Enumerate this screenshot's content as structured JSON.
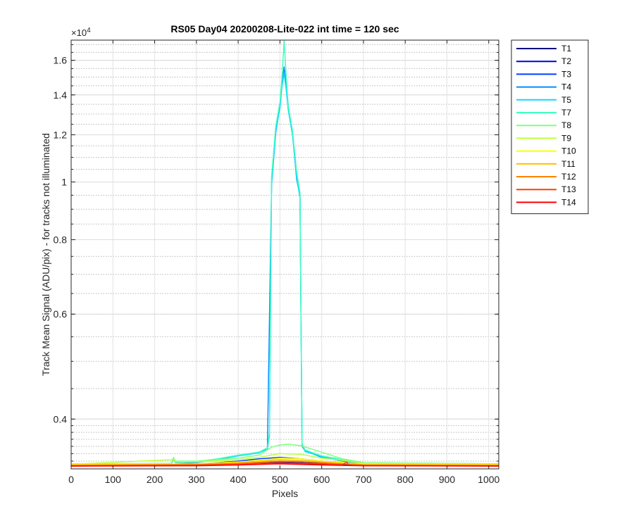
{
  "chart_data": {
    "type": "line",
    "title": "RS05 Day04 20200208-Lite-022 int time = 120 sec",
    "xlabel": "Pixels",
    "ylabel": "Track Mean Signal (ADU/pix) - for tracks not illuminated",
    "y_exponent_label": "×10",
    "y_exponent_power": "4",
    "y_scale": "log",
    "xlim": [
      0,
      1024
    ],
    "ylim": [
      3300,
      17300
    ],
    "x_ticks": [
      0,
      100,
      200,
      300,
      400,
      500,
      600,
      700,
      800,
      900,
      1000
    ],
    "x_tick_labels": [
      "0",
      "100",
      "200",
      "300",
      "400",
      "500",
      "600",
      "700",
      "800",
      "900",
      "1000"
    ],
    "y_ticks": [
      4000,
      6000,
      8000,
      10000,
      12000,
      14000,
      16000
    ],
    "y_tick_labels": [
      "0.4",
      "0.6",
      "0.8",
      "1",
      "1.2",
      "1.4",
      "1.6"
    ],
    "y_minor_ticks": [
      3400,
      3500,
      3600,
      3700,
      3800,
      3900,
      4000,
      4500,
      5000,
      5500,
      6000,
      6500,
      7000,
      7500,
      8000,
      8500,
      9000,
      9500,
      10000,
      10500,
      11000,
      11500,
      12000,
      12500,
      13000,
      13500,
      14000,
      14500,
      15000,
      15500,
      16000,
      16500,
      17000
    ],
    "grid": true,
    "minor_grid": true,
    "legend_position": "outside-top-right",
    "series": [
      {
        "name": "T1",
        "color": "#00007f",
        "points": [
          [
            0,
            3340
          ],
          [
            300,
            3345
          ],
          [
            400,
            3360
          ],
          [
            500,
            3375
          ],
          [
            600,
            3360
          ],
          [
            700,
            3345
          ],
          [
            1024,
            3340
          ]
        ]
      },
      {
        "name": "T2",
        "color": "#0000d4",
        "points": [
          [
            0,
            3345
          ],
          [
            300,
            3350
          ],
          [
            400,
            3370
          ],
          [
            500,
            3390
          ],
          [
            600,
            3370
          ],
          [
            700,
            3350
          ],
          [
            1024,
            3345
          ]
        ]
      },
      {
        "name": "T3",
        "color": "#0040ff",
        "points": [
          [
            0,
            3350
          ],
          [
            300,
            3360
          ],
          [
            400,
            3400
          ],
          [
            450,
            3430
          ],
          [
            500,
            3450
          ],
          [
            550,
            3430
          ],
          [
            600,
            3400
          ],
          [
            700,
            3360
          ],
          [
            1024,
            3350
          ]
        ]
      },
      {
        "name": "T4",
        "color": "#0090ff",
        "points": [
          [
            0,
            3355
          ],
          [
            250,
            3360
          ],
          [
            300,
            3380
          ],
          [
            350,
            3420
          ],
          [
            400,
            3470
          ],
          [
            450,
            3520
          ],
          [
            470,
            3560
          ],
          [
            480,
            9900
          ],
          [
            490,
            12100
          ],
          [
            500,
            13400
          ],
          [
            505,
            14600
          ],
          [
            510,
            15600
          ],
          [
            515,
            14600
          ],
          [
            520,
            13400
          ],
          [
            530,
            12100
          ],
          [
            540,
            10100
          ],
          [
            548,
            9500
          ],
          [
            553,
            3600
          ],
          [
            560,
            3540
          ],
          [
            600,
            3450
          ],
          [
            650,
            3400
          ],
          [
            700,
            3370
          ],
          [
            1024,
            3355
          ]
        ]
      },
      {
        "name": "T5",
        "color": "#10d8ff",
        "points": [
          [
            0,
            3360
          ],
          [
            240,
            3365
          ],
          [
            245,
            3420
          ],
          [
            250,
            3380
          ],
          [
            300,
            3385
          ],
          [
            350,
            3420
          ],
          [
            400,
            3470
          ],
          [
            450,
            3510
          ],
          [
            470,
            3560
          ],
          [
            475,
            3750
          ],
          [
            480,
            10000
          ],
          [
            490,
            12200
          ],
          [
            500,
            13300
          ],
          [
            505,
            14500
          ],
          [
            510,
            15200
          ],
          [
            515,
            14300
          ],
          [
            520,
            13200
          ],
          [
            530,
            12000
          ],
          [
            540,
            10200
          ],
          [
            548,
            9400
          ],
          [
            553,
            3620
          ],
          [
            560,
            3530
          ],
          [
            600,
            3460
          ],
          [
            650,
            3410
          ],
          [
            700,
            3370
          ],
          [
            1024,
            3360
          ]
        ]
      },
      {
        "name": "T7",
        "color": "#40ffbf",
        "points": [
          [
            0,
            3360
          ],
          [
            240,
            3370
          ],
          [
            245,
            3440
          ],
          [
            250,
            3390
          ],
          [
            300,
            3395
          ],
          [
            350,
            3430
          ],
          [
            400,
            3480
          ],
          [
            450,
            3520
          ],
          [
            470,
            3580
          ],
          [
            475,
            3800
          ],
          [
            480,
            10200
          ],
          [
            490,
            12400
          ],
          [
            500,
            13600
          ],
          [
            505,
            15000
          ],
          [
            510,
            17300
          ],
          [
            515,
            15000
          ],
          [
            520,
            13400
          ],
          [
            530,
            12200
          ],
          [
            540,
            10400
          ],
          [
            548,
            9600
          ],
          [
            553,
            3640
          ],
          [
            560,
            3550
          ],
          [
            600,
            3470
          ],
          [
            650,
            3420
          ],
          [
            700,
            3380
          ],
          [
            1024,
            3365
          ]
        ]
      },
      {
        "name": "T8",
        "color": "#80ff80",
        "points": [
          [
            0,
            3365
          ],
          [
            240,
            3370
          ],
          [
            245,
            3450
          ],
          [
            250,
            3400
          ],
          [
            300,
            3400
          ],
          [
            400,
            3440
          ],
          [
            450,
            3480
          ],
          [
            480,
            3590
          ],
          [
            500,
            3620
          ],
          [
            520,
            3630
          ],
          [
            550,
            3610
          ],
          [
            600,
            3520
          ],
          [
            650,
            3430
          ],
          [
            700,
            3380
          ],
          [
            1024,
            3365
          ]
        ]
      },
      {
        "name": "T9",
        "color": "#bfff40",
        "points": [
          [
            0,
            3360
          ],
          [
            245,
            3420
          ],
          [
            250,
            3390
          ],
          [
            300,
            3390
          ],
          [
            400,
            3420
          ],
          [
            450,
            3450
          ],
          [
            500,
            3500
          ],
          [
            550,
            3490
          ],
          [
            600,
            3440
          ],
          [
            650,
            3410
          ],
          [
            700,
            3370
          ],
          [
            1024,
            3360
          ]
        ]
      },
      {
        "name": "T10",
        "color": "#ffff00",
        "points": [
          [
            0,
            3355
          ],
          [
            300,
            3365
          ],
          [
            400,
            3390
          ],
          [
            450,
            3410
          ],
          [
            500,
            3440
          ],
          [
            550,
            3430
          ],
          [
            600,
            3400
          ],
          [
            650,
            3380
          ],
          [
            700,
            3360
          ],
          [
            1024,
            3355
          ]
        ]
      },
      {
        "name": "T11",
        "color": "#ffbf00",
        "points": [
          [
            0,
            3350
          ],
          [
            300,
            3360
          ],
          [
            400,
            3380
          ],
          [
            450,
            3400
          ],
          [
            500,
            3420
          ],
          [
            550,
            3410
          ],
          [
            600,
            3390
          ],
          [
            650,
            3370
          ],
          [
            700,
            3355
          ],
          [
            1024,
            3350
          ]
        ]
      },
      {
        "name": "T12",
        "color": "#ff8000",
        "points": [
          [
            0,
            3345
          ],
          [
            300,
            3355
          ],
          [
            400,
            3370
          ],
          [
            450,
            3385
          ],
          [
            500,
            3400
          ],
          [
            550,
            3395
          ],
          [
            600,
            3380
          ],
          [
            650,
            3365
          ],
          [
            700,
            3350
          ],
          [
            1024,
            3345
          ]
        ]
      },
      {
        "name": "T13",
        "color": "#ff4000",
        "points": [
          [
            0,
            3340
          ],
          [
            300,
            3348
          ],
          [
            400,
            3360
          ],
          [
            500,
            3380
          ],
          [
            600,
            3365
          ],
          [
            650,
            3355
          ],
          [
            660,
            3390
          ],
          [
            665,
            3345
          ],
          [
            700,
            3342
          ],
          [
            1024,
            3340
          ]
        ]
      },
      {
        "name": "T14",
        "color": "#ff0000",
        "points": [
          [
            0,
            3335
          ],
          [
            300,
            3340
          ],
          [
            400,
            3350
          ],
          [
            500,
            3365
          ],
          [
            600,
            3350
          ],
          [
            700,
            3340
          ],
          [
            1024,
            3335
          ]
        ]
      }
    ]
  }
}
